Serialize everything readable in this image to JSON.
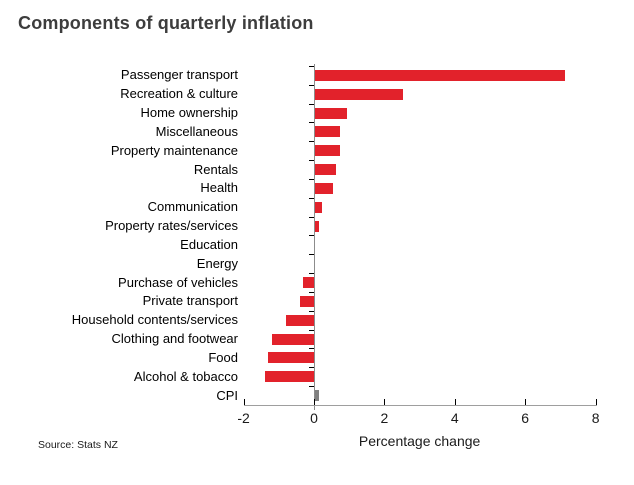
{
  "title": "Components of quarterly inflation",
  "source": "Source: Stats NZ",
  "chart_data": {
    "type": "bar",
    "orientation": "horizontal",
    "title": "Components of quarterly inflation",
    "xlabel": "Percentage change",
    "ylabel": "",
    "xlim": [
      -2,
      8
    ],
    "x_ticks": [
      -2,
      0,
      2,
      4,
      6,
      8
    ],
    "grid": false,
    "legend": false,
    "categories": [
      "Passenger transport",
      "Recreation & culture",
      "Home ownership",
      "Miscellaneous",
      "Property maintenance",
      "Rentals",
      "Health",
      "Communication",
      "Property rates/services",
      "Education",
      "Energy",
      "Purchase of vehicles",
      "Private transport",
      "Household contents/services",
      "Clothing and footwear",
      "Food",
      "Alcohol & tobacco",
      "CPI"
    ],
    "values": [
      7.1,
      2.5,
      0.9,
      0.7,
      0.7,
      0.6,
      0.5,
      0.2,
      0.1,
      0.0,
      0.0,
      -0.3,
      -0.4,
      -0.8,
      -1.2,
      -1.3,
      -1.4,
      0.1
    ],
    "bar_colors": [
      "#e2222b",
      "#e2222b",
      "#e2222b",
      "#e2222b",
      "#e2222b",
      "#e2222b",
      "#e2222b",
      "#e2222b",
      "#e2222b",
      "#e2222b",
      "#e2222b",
      "#e2222b",
      "#e2222b",
      "#e2222b",
      "#e2222b",
      "#e2222b",
      "#e2222b",
      "#7f7f7f"
    ],
    "accent_color": "#e2222b",
    "cpi_color": "#7f7f7f"
  }
}
